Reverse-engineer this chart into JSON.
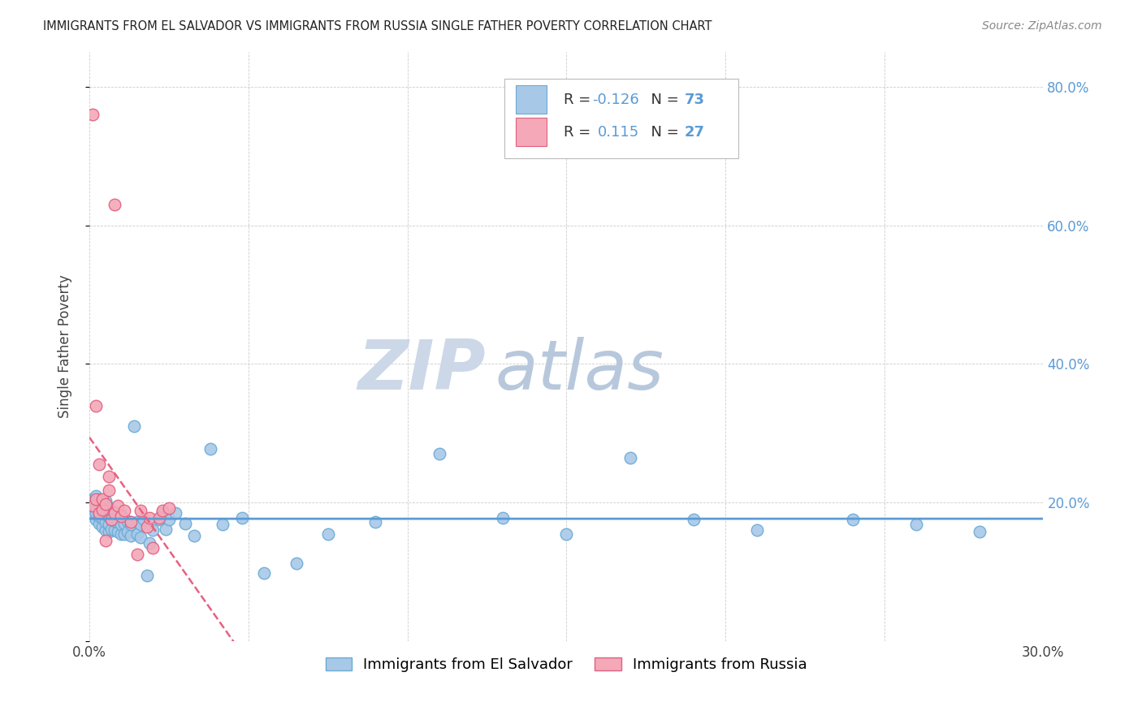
{
  "title": "IMMIGRANTS FROM EL SALVADOR VS IMMIGRANTS FROM RUSSIA SINGLE FATHER POVERTY CORRELATION CHART",
  "source": "Source: ZipAtlas.com",
  "ylabel": "Single Father Poverty",
  "xmin": 0.0,
  "xmax": 0.3,
  "ymin": 0.0,
  "ymax": 0.85,
  "yticks": [
    0.0,
    0.2,
    0.4,
    0.6,
    0.8
  ],
  "ytick_labels": [
    "",
    "20.0%",
    "40.0%",
    "60.0%",
    "80.0%"
  ],
  "xticks": [
    0.0,
    0.05,
    0.1,
    0.15,
    0.2,
    0.25,
    0.3
  ],
  "xtick_labels": [
    "0.0%",
    "",
    "",
    "",
    "",
    "",
    "30.0%"
  ],
  "legend_labels": [
    "Immigrants from El Salvador",
    "Immigrants from Russia"
  ],
  "R_el_salvador": -0.126,
  "N_el_salvador": 73,
  "R_russia": 0.115,
  "N_russia": 27,
  "color_el_salvador": "#a8c8e8",
  "color_russia": "#f4a8b8",
  "edge_color_el_salvador": "#6aaad4",
  "edge_color_russia": "#e06080",
  "line_color_el_salvador": "#5b9bd5",
  "line_color_russia": "#e86080",
  "background_color": "#ffffff",
  "watermark_zip_color": "#ccd8e8",
  "watermark_atlas_color": "#b8c8dc",
  "el_salvador_x": [
    0.001,
    0.001,
    0.001,
    0.002,
    0.002,
    0.002,
    0.002,
    0.003,
    0.003,
    0.003,
    0.003,
    0.004,
    0.004,
    0.004,
    0.004,
    0.005,
    0.005,
    0.005,
    0.005,
    0.005,
    0.006,
    0.006,
    0.006,
    0.006,
    0.007,
    0.007,
    0.007,
    0.008,
    0.008,
    0.008,
    0.009,
    0.009,
    0.01,
    0.01,
    0.01,
    0.011,
    0.011,
    0.012,
    0.012,
    0.013,
    0.013,
    0.014,
    0.015,
    0.015,
    0.016,
    0.016,
    0.017,
    0.018,
    0.019,
    0.02,
    0.022,
    0.023,
    0.024,
    0.025,
    0.027,
    0.03,
    0.033,
    0.038,
    0.042,
    0.048,
    0.055,
    0.065,
    0.075,
    0.09,
    0.11,
    0.13,
    0.15,
    0.17,
    0.19,
    0.21,
    0.24,
    0.26,
    0.28
  ],
  "el_salvador_y": [
    0.185,
    0.195,
    0.205,
    0.175,
    0.185,
    0.195,
    0.21,
    0.17,
    0.18,
    0.195,
    0.205,
    0.165,
    0.178,
    0.188,
    0.2,
    0.16,
    0.172,
    0.182,
    0.192,
    0.202,
    0.158,
    0.168,
    0.18,
    0.193,
    0.162,
    0.175,
    0.188,
    0.16,
    0.173,
    0.186,
    0.158,
    0.172,
    0.155,
    0.168,
    0.182,
    0.155,
    0.17,
    0.158,
    0.173,
    0.152,
    0.168,
    0.31,
    0.155,
    0.172,
    0.15,
    0.168,
    0.175,
    0.095,
    0.142,
    0.16,
    0.175,
    0.185,
    0.162,
    0.175,
    0.185,
    0.17,
    0.152,
    0.278,
    0.168,
    0.178,
    0.098,
    0.112,
    0.155,
    0.172,
    0.27,
    0.178,
    0.155,
    0.265,
    0.175,
    0.16,
    0.175,
    0.168,
    0.158
  ],
  "russia_x": [
    0.001,
    0.001,
    0.002,
    0.002,
    0.003,
    0.003,
    0.004,
    0.004,
    0.005,
    0.005,
    0.006,
    0.006,
    0.007,
    0.008,
    0.008,
    0.009,
    0.01,
    0.011,
    0.013,
    0.015,
    0.016,
    0.018,
    0.019,
    0.02,
    0.022,
    0.023,
    0.025
  ],
  "russia_y": [
    0.195,
    0.76,
    0.205,
    0.34,
    0.185,
    0.255,
    0.19,
    0.205,
    0.198,
    0.145,
    0.218,
    0.238,
    0.175,
    0.185,
    0.63,
    0.195,
    0.18,
    0.188,
    0.172,
    0.125,
    0.188,
    0.165,
    0.178,
    0.135,
    0.178,
    0.188,
    0.192
  ]
}
